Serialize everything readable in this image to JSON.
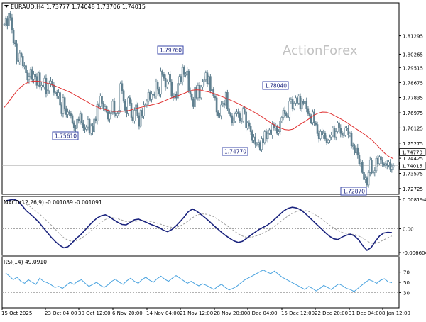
{
  "header": {
    "symbol_tf": "EURAUD,H4",
    "ohlc": "1.73777 1.74048 1.73706 1.74015"
  },
  "watermark": "ActionForex",
  "colors": {
    "candle": "#5f7f8f",
    "ma": "#e03030",
    "macd": "#1a237e",
    "signal": "#9e9e9e",
    "rsi": "#4aa3df",
    "grid_dash": "#9a9a9a",
    "label_border": "#3a47a8"
  },
  "chart_data": [
    {
      "type": "candlestick",
      "panel": "price",
      "ylim": [
        1.724,
        1.8315
      ],
      "y_ticks": [
        "1.81295",
        "1.80265",
        "1.79515",
        "1.78675",
        "1.77835",
        "1.76975",
        "1.76125",
        "1.75275",
        "1.74425",
        "1.73575",
        "1.72725"
      ],
      "x_tick_labels": [
        "15 Oct 2025",
        "23 Oct 04:00",
        "30 Oct 12:00",
        "6 Nov 20:00",
        "14 Nov 04:00",
        "21 Nov 12:00",
        "28 Nov 20:00",
        "8 Dec 04:00",
        "15 Dec 12:00",
        "22 Dec 20:00",
        "31 Dec 04:00",
        "8 Jan 12:00"
      ],
      "series": [
        {
          "name": "EURAUD,H4",
          "values": [
            1.8195,
            1.8225,
            1.8185,
            1.8255,
            1.8232,
            1.8162,
            1.8092,
            1.8085,
            1.7992,
            1.7982,
            1.8032,
            1.8015,
            1.7962,
            1.7962,
            1.7922,
            1.7882,
            1.7902,
            1.7942,
            1.7884,
            1.7912,
            1.7902,
            1.7852,
            1.7922,
            1.7842,
            1.7852,
            1.7842,
            1.7892,
            1.7804,
            1.7822,
            1.7862,
            1.7876,
            1.7853,
            1.7812,
            1.7812,
            1.7792,
            1.7811,
            1.7742,
            1.7692,
            1.7783,
            1.7722,
            1.7688,
            1.7702,
            1.7692,
            1.7682,
            1.7642,
            1.7612,
            1.7611,
            1.7661,
            1.7652,
            1.7691,
            1.7642,
            1.7612,
            1.7605,
            1.7618,
            1.7661,
            1.7583,
            1.7623,
            1.7592,
            1.7662,
            1.7652,
            1.7743,
            1.7732,
            1.7792,
            1.7752,
            1.7722,
            1.7732,
            1.7702,
            1.7662,
            1.7692,
            1.7702,
            1.7762,
            1.7692,
            1.7682,
            1.7692,
            1.7712,
            1.7862,
            1.7822,
            1.7762,
            1.7712,
            1.7692,
            1.7782,
            1.7752,
            1.7672,
            1.7652,
            1.7712,
            1.7742,
            1.7682,
            1.7622,
            1.7712,
            1.7681,
            1.7742,
            1.7742,
            1.7762,
            1.7812,
            1.7772,
            1.7802,
            1.7802,
            1.7792,
            1.7872,
            1.7832,
            1.7802,
            1.7932,
            1.7912,
            1.7892,
            1.7842,
            1.7872,
            1.7912,
            1.7872,
            1.7792,
            1.7782,
            1.7802,
            1.7781,
            1.7862,
            1.7902,
            1.7872,
            1.7952,
            1.7912,
            1.7912,
            1.7932,
            1.7822,
            1.7802,
            1.7772,
            1.7732,
            1.7842,
            1.7782,
            1.7852,
            1.7782,
            1.7842,
            1.7872,
            1.7882,
            1.7922,
            1.7862,
            1.7902,
            1.7822,
            1.7832,
            1.7792,
            1.7782,
            1.7702,
            1.7682,
            1.7682,
            1.7742,
            1.7752,
            1.7742,
            1.7812,
            1.7722,
            1.7692,
            1.7682,
            1.7642,
            1.7652,
            1.7692,
            1.7702,
            1.7692,
            1.7653,
            1.7652,
            1.7722,
            1.7702,
            1.7612,
            1.7642,
            1.7622,
            1.7592,
            1.7542,
            1.7562,
            1.7522,
            1.7522,
            1.7532,
            1.7492,
            1.7552,
            1.7531,
            1.7592,
            1.7552,
            1.7582,
            1.7602,
            1.7572,
            1.7632,
            1.7612,
            1.7622,
            1.7582,
            1.7592,
            1.7652,
            1.7672,
            1.7712,
            1.7692,
            1.7682,
            1.7672,
            1.7762,
            1.7772,
            1.7722,
            1.7752,
            1.7782,
            1.7752,
            1.7792,
            1.7722,
            1.7762,
            1.7752,
            1.7762,
            1.7722,
            1.7692,
            1.7682,
            1.7643,
            1.7702,
            1.7642,
            1.7632,
            1.7581,
            1.7552,
            1.7593,
            1.7572,
            1.7582,
            1.7552,
            1.7532,
            1.7542,
            1.7562,
            1.7572,
            1.7612,
            1.7562,
            1.7592,
            1.7642,
            1.7612,
            1.7582,
            1.7572,
            1.7572,
            1.7612,
            1.7612,
            1.7572,
            1.7582,
            1.7512,
            1.7512,
            1.7472,
            1.7502,
            1.7461,
            1.7412,
            1.7422,
            1.7362,
            1.7322,
            1.7332,
            1.7292,
            1.7362,
            1.7432,
            1.7362,
            1.7363,
            1.7372,
            1.7442,
            1.7412,
            1.7452,
            1.7432,
            1.7412,
            1.7402,
            1.7412,
            1.7402,
            1.7422,
            1.7382,
            1.7392,
            1.7402
          ]
        },
        {
          "name": "MA",
          "values": [
            1.7728,
            1.7758,
            1.779,
            1.782,
            1.7843,
            1.7861,
            1.7871,
            1.7876,
            1.7875,
            1.7872,
            1.7866,
            1.7859,
            1.785,
            1.784,
            1.783,
            1.782,
            1.781,
            1.7796,
            1.7783,
            1.777,
            1.7757,
            1.7743,
            1.7733,
            1.7723,
            1.7717,
            1.771,
            1.7706,
            1.7706,
            1.7706,
            1.7708,
            1.7712,
            1.7719,
            1.7725,
            1.773,
            1.7736,
            1.7741,
            1.7746,
            1.7752,
            1.7761,
            1.7772,
            1.7782,
            1.779,
            1.7798,
            1.7807,
            1.7817,
            1.7824,
            1.7827,
            1.7825,
            1.7819,
            1.7814,
            1.7807,
            1.7798,
            1.7789,
            1.7779,
            1.7769,
            1.7759,
            1.7748,
            1.7736,
            1.7724,
            1.7711,
            1.7698,
            1.7684,
            1.7669,
            1.7652,
            1.7637,
            1.7624,
            1.7613,
            1.7604,
            1.7601,
            1.7606,
            1.7622,
            1.7637,
            1.7651,
            1.7667,
            1.7684,
            1.7695,
            1.7702,
            1.7701,
            1.7693,
            1.7681,
            1.7669,
            1.7656,
            1.7641,
            1.7625,
            1.7609,
            1.7594,
            1.7578,
            1.7561,
            1.7542,
            1.7518,
            1.7493,
            1.7469,
            1.7451,
            1.744
          ]
        }
      ]
    },
    {
      "type": "line",
      "panel": "macd",
      "title": "MACD(12,26,9) -0.001089 -0.001091",
      "ylim": [
        -0.0074,
        0.009
      ],
      "y_ticks": [
        "0.008194",
        "0.00",
        "-0.006604"
      ],
      "series": [
        {
          "name": "MACD",
          "values": [
            0.0078,
            0.008,
            0.0082,
            0.0077,
            0.0064,
            0.005,
            0.004,
            0.003,
            0.0018,
            0.0004,
            -0.001,
            -0.0024,
            -0.0036,
            -0.0046,
            -0.0053,
            -0.005,
            -0.0039,
            -0.0027,
            -0.0017,
            -0.0005,
            0.0008,
            0.002,
            0.003,
            0.0036,
            0.0039,
            0.0033,
            0.0025,
            0.0018,
            0.0012,
            0.0011,
            0.0018,
            0.0025,
            0.0027,
            0.0022,
            0.0017,
            0.0012,
            0.0008,
            0.0003,
            -0.0004,
            -0.0008,
            -0.0002,
            0.0008,
            0.002,
            0.0033,
            0.0048,
            0.0055,
            0.0049,
            0.004,
            0.0031,
            0.0021,
            0.001,
            0.0,
            -0.001,
            -0.0019,
            -0.0027,
            -0.0034,
            -0.0038,
            -0.0035,
            -0.0027,
            -0.0018,
            -0.001,
            -0.0002,
            0.0004,
            0.001,
            0.0019,
            0.0029,
            0.004,
            0.005,
            0.0057,
            0.006,
            0.0058,
            0.0053,
            0.0044,
            0.0033,
            0.0022,
            0.0011,
            0.0,
            -0.0011,
            -0.0021,
            -0.0028,
            -0.003,
            -0.0023,
            -0.0018,
            -0.0015,
            -0.002,
            -0.0031,
            -0.0048,
            -0.006,
            -0.0052,
            -0.0035,
            -0.002,
            -0.0012,
            -0.001,
            -0.0011
          ]
        },
        {
          "name": "Signal",
          "values": [
            0.007,
            0.0074,
            0.0077,
            0.0078,
            0.0074,
            0.0068,
            0.0061,
            0.0052,
            0.0043,
            0.0032,
            0.0021,
            0.001,
            -0.0002,
            -0.0014,
            -0.0025,
            -0.0032,
            -0.0035,
            -0.0033,
            -0.0028,
            -0.002,
            -0.0011,
            -0.0001,
            0.0009,
            0.0018,
            0.0026,
            0.0031,
            0.0031,
            0.0028,
            0.0024,
            0.002,
            0.0019,
            0.002,
            0.0022,
            0.0023,
            0.0022,
            0.002,
            0.0017,
            0.0014,
            0.001,
            0.0006,
            0.0004,
            0.0004,
            0.0008,
            0.0014,
            0.0022,
            0.0031,
            0.0038,
            0.0041,
            0.0041,
            0.0039,
            0.0034,
            0.0027,
            0.0019,
            0.0011,
            0.0003,
            -0.0006,
            -0.0014,
            -0.002,
            -0.0024,
            -0.0024,
            -0.0021,
            -0.0017,
            -0.0012,
            -0.0006,
            0.0001,
            0.0009,
            0.0018,
            0.0027,
            0.0036,
            0.0043,
            0.0048,
            0.0051,
            0.0051,
            0.0048,
            0.0043,
            0.0036,
            0.0028,
            0.0019,
            0.001,
            0.0002,
            -0.0005,
            -0.001,
            -0.0013,
            -0.0015,
            -0.0016,
            -0.002,
            -0.0026,
            -0.0034,
            -0.004,
            -0.0041,
            -0.0037,
            -0.0031,
            -0.0025,
            -0.002
          ]
        }
      ]
    },
    {
      "type": "line",
      "panel": "rsi",
      "title": "RSI(14) 49.0910",
      "ylim": [
        0,
        100
      ],
      "y_ticks": [
        "70",
        "50",
        "30"
      ],
      "series": [
        {
          "name": "RSI(14)",
          "values": [
            68,
            62,
            55,
            60,
            52,
            48,
            55,
            50,
            46,
            58,
            52,
            49,
            45,
            40,
            42,
            38,
            44,
            50,
            46,
            52,
            55,
            48,
            42,
            46,
            50,
            44,
            40,
            45,
            52,
            56,
            50,
            46,
            53,
            58,
            52,
            48,
            55,
            60,
            54,
            50,
            57,
            62,
            56,
            52,
            58,
            63,
            58,
            53,
            48,
            52,
            47,
            43,
            47,
            44,
            40,
            36,
            42,
            46,
            40,
            35,
            38,
            42,
            48,
            54,
            58,
            62,
            66,
            70,
            74,
            70,
            67,
            72,
            66,
            60,
            56,
            52,
            48,
            44,
            40,
            36,
            42,
            38,
            33,
            38,
            44,
            40,
            36,
            42,
            47,
            43,
            38,
            36,
            32,
            38,
            44,
            50,
            55,
            52,
            48,
            54,
            57,
            51,
            49
          ]
        }
      ]
    }
  ],
  "price_labels": {
    "current": "1.74015",
    "line_level": "1.74770",
    "swings": [
      "1.79760",
      "1.75610",
      "1.78040",
      "1.74770",
      "1.72870"
    ]
  },
  "rsi_axis": {
    "top_label": "70"
  }
}
